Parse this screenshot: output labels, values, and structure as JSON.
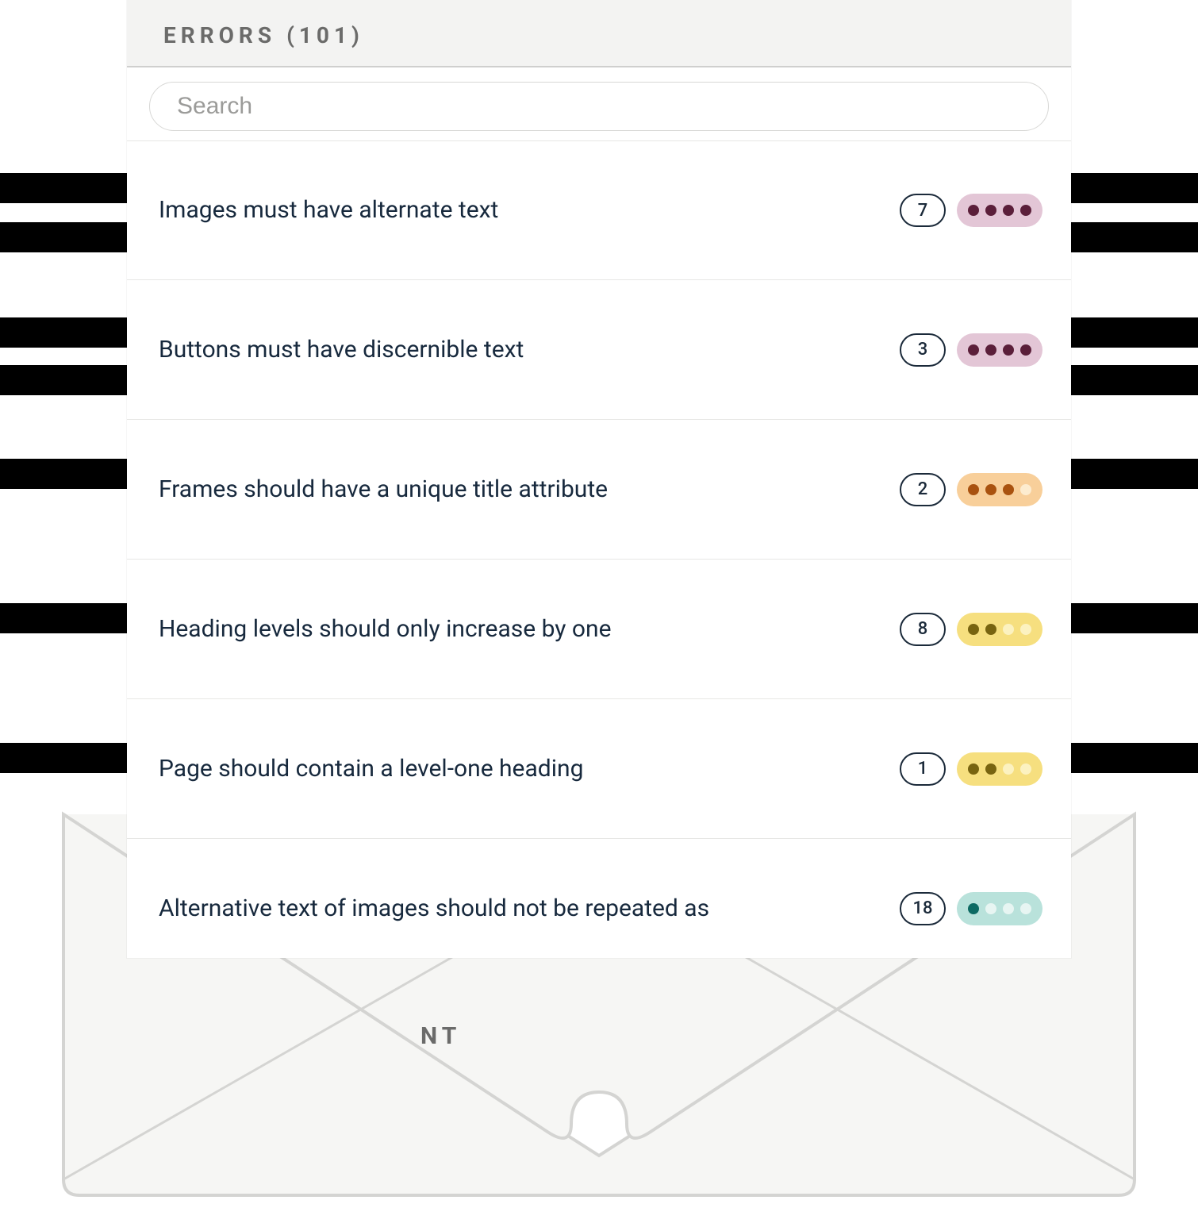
{
  "header": {
    "title": "ERRORS (101)"
  },
  "search": {
    "placeholder": "Search",
    "value": ""
  },
  "colors": {
    "text_primary": "#17293d",
    "text_muted": "#6b6b6a",
    "header_bg": "#f3f3f2",
    "divider": "#e7e7e5",
    "count_border": "#1b2a3a",
    "bar_black": "#000000",
    "envelope_fill": "#f6f6f4",
    "envelope_stroke": "#d4d4d2"
  },
  "fragment_text": "NT",
  "bg_bar_tops": [
    218,
    280,
    400,
    460,
    578,
    760,
    936
  ],
  "bg_bar_height": 38,
  "severity_palette": {
    "critical": {
      "bg": "#e3c6d6",
      "dot_active": "#5b1f3a",
      "dot_inactive": "#f3e4ec"
    },
    "serious": {
      "bg": "#f8cf9a",
      "dot_active": "#a9520f",
      "dot_inactive": "#fdeccf"
    },
    "moderate": {
      "bg": "#f6df7f",
      "dot_active": "#786410",
      "dot_inactive": "#fcf2c0"
    },
    "minor": {
      "bg": "#b9e2db",
      "dot_active": "#0d6a63",
      "dot_inactive": "#e7f5f2"
    }
  },
  "issues": [
    {
      "title": "Images must have alternate text",
      "count": 7,
      "severity": "critical",
      "level": 4
    },
    {
      "title": "Buttons must have discernible text",
      "count": 3,
      "severity": "critical",
      "level": 4
    },
    {
      "title": "Frames should have a unique title attribute",
      "count": 2,
      "severity": "serious",
      "level": 3
    },
    {
      "title": "Heading levels should only increase by one",
      "count": 8,
      "severity": "moderate",
      "level": 2
    },
    {
      "title": "Page should contain a level-one heading",
      "count": 1,
      "severity": "moderate",
      "level": 2
    },
    {
      "title": "Alternative text of images should not be repeated as",
      "count": 18,
      "severity": "minor",
      "level": 1
    }
  ]
}
